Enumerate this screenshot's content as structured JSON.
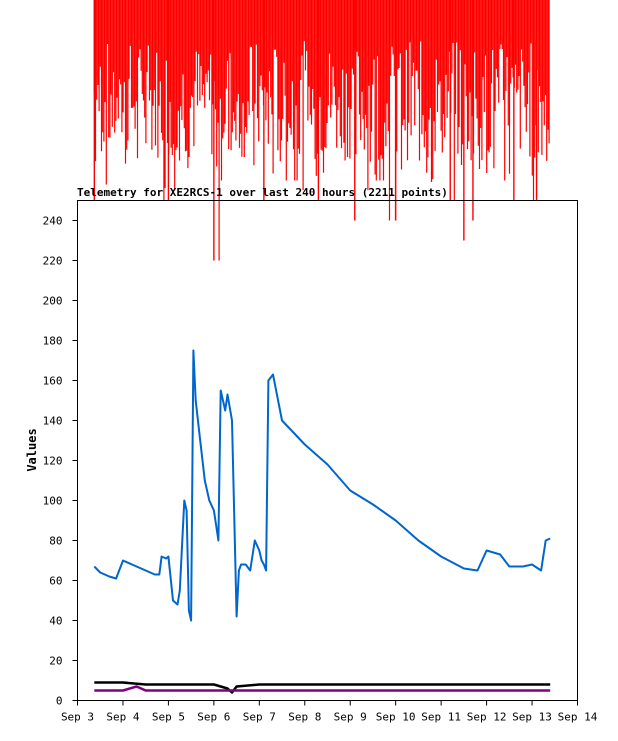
{
  "chart_data": {
    "type": "line",
    "title": "Telemetry for XE2RCS-1 over last 240 hours (2211 points)",
    "xlabel": "",
    "ylabel": "Values",
    "xlim": [
      "Sep 3",
      "Sep 14"
    ],
    "ylim": [
      0,
      250
    ],
    "x_ticks": [
      "Sep 3",
      "Sep 4",
      "Sep 5",
      "Sep 6",
      "Sep 7",
      "Sep 8",
      "Sep 9",
      "Sep 10",
      "Sep 11",
      "Sep 12",
      "Sep 13",
      "Sep 14"
    ],
    "y_ticks": [
      0,
      20,
      40,
      60,
      80,
      100,
      120,
      140,
      160,
      180,
      200,
      220,
      240
    ],
    "grid": false,
    "legend": "none",
    "series": [
      {
        "color": "#ff0000",
        "style": "dense-spikes",
        "x": [
          3.37,
          3.5,
          3.8,
          4.1,
          4.4,
          4.8,
          5.0,
          5.3,
          5.6,
          6.0,
          6.25,
          6.5,
          6.8,
          7.1,
          7.4,
          7.7,
          8.0,
          8.3,
          8.6,
          8.9,
          9.1,
          9.4,
          9.7,
          10.0,
          10.3,
          10.6,
          10.9,
          11.2,
          11.5,
          11.7,
          12.0,
          12.3,
          12.6,
          12.9,
          13.1,
          13.4
        ],
        "y": [
          250,
          270,
          260,
          280,
          300,
          260,
          250,
          270,
          290,
          220,
          260,
          280,
          270,
          250,
          280,
          260,
          290,
          250,
          270,
          260,
          240,
          280,
          260,
          240,
          290,
          270,
          260,
          250,
          230,
          240,
          280,
          260,
          250,
          290,
          250,
          280
        ]
      },
      {
        "color": "#0066cc",
        "x": [
          3.37,
          3.5,
          3.7,
          3.85,
          4.0,
          4.2,
          4.5,
          4.7,
          4.8,
          4.85,
          4.95,
          5.0,
          5.1,
          5.2,
          5.25,
          5.35,
          5.4,
          5.45,
          5.5,
          5.55,
          5.6,
          5.7,
          5.8,
          5.9,
          6.0,
          6.1,
          6.15,
          6.2,
          6.25,
          6.3,
          6.4,
          6.5,
          6.55,
          6.6,
          6.7,
          6.8,
          6.9,
          7.0,
          7.05,
          7.1,
          7.15,
          7.2,
          7.3,
          7.5,
          8.0,
          8.5,
          9.0,
          9.5,
          10.0,
          10.5,
          11.0,
          11.5,
          11.8,
          12.0,
          12.3,
          12.5,
          12.8,
          13.0,
          13.2,
          13.3,
          13.4
        ],
        "y": [
          67,
          64,
          62,
          61,
          70,
          68,
          65,
          63,
          63,
          72,
          71,
          72,
          50,
          48,
          55,
          100,
          95,
          45,
          40,
          175,
          150,
          130,
          110,
          100,
          95,
          80,
          155,
          150,
          145,
          153,
          140,
          42,
          65,
          68,
          68,
          65,
          80,
          75,
          70,
          68,
          65,
          160,
          163,
          140,
          128,
          118,
          105,
          98,
          90,
          80,
          72,
          66,
          65,
          75,
          73,
          67,
          67,
          68,
          65,
          80,
          81
        ]
      },
      {
        "color": "#000000",
        "x": [
          3.37,
          4.0,
          4.5,
          5.0,
          5.5,
          6.0,
          6.3,
          6.4,
          6.5,
          7.0,
          8.0,
          9.0,
          10.0,
          11.0,
          12.0,
          13.0,
          13.4
        ],
        "y": [
          9,
          9,
          8,
          8,
          8,
          8,
          6,
          4,
          7,
          8,
          8,
          8,
          8,
          8,
          8,
          8,
          8
        ]
      },
      {
        "color": "#800080",
        "x": [
          3.37,
          4.0,
          4.3,
          4.5,
          5.0,
          5.5,
          6.0,
          6.5,
          7.0,
          8.0,
          9.0,
          10.0,
          11.0,
          12.0,
          13.0,
          13.4
        ],
        "y": [
          5,
          5,
          7,
          5,
          5,
          5,
          5,
          5,
          5,
          5,
          5,
          5,
          5,
          5,
          5,
          5
        ]
      }
    ]
  }
}
